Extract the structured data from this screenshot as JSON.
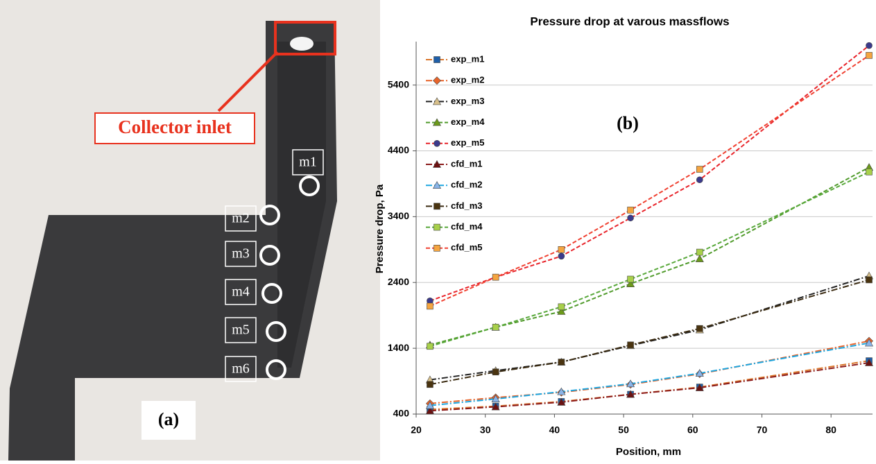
{
  "figure_a": {
    "callout": "Collector inlet",
    "markers": [
      "m1",
      "m2",
      "m3",
      "m4",
      "m5",
      "m6"
    ],
    "panel_label": "(a)"
  },
  "chart_data": {
    "type": "line",
    "title": "Pressure drop at varous massflows",
    "x_label": "Position, mm",
    "y_label": "Pressure drop, Pa",
    "annotation": "(b)",
    "x": [
      22,
      31.5,
      41,
      51,
      61,
      85.5
    ],
    "xlim": [
      20,
      86
    ],
    "xticks": [
      20,
      30,
      40,
      50,
      60,
      70,
      80
    ],
    "ylim": [
      400,
      6060
    ],
    "yticks": [
      400,
      1400,
      2400,
      3400,
      4400,
      5400
    ],
    "grid": true,
    "legend": "upper-left",
    "series": [
      {
        "name": "exp_m1",
        "color": "#d9752a",
        "marker": "square",
        "marker_color": "#1f5fa8",
        "line_style": "dashdot",
        "values": [
          470,
          520,
          590,
          700,
          810,
          1210
        ]
      },
      {
        "name": "exp_m2",
        "color": "#e8642a",
        "marker": "diamond",
        "marker_color": "#e8642a",
        "line_style": "dashdot",
        "values": [
          560,
          650,
          730,
          850,
          1010,
          1510
        ]
      },
      {
        "name": "exp_m3",
        "color": "#222222",
        "marker": "triangle",
        "marker_color": "#d8c08a",
        "line_style": "dashdot",
        "values": [
          920,
          1060,
          1190,
          1440,
          1680,
          2500
        ]
      },
      {
        "name": "exp_m4",
        "color": "#4f9a2a",
        "marker": "triangle",
        "marker_color": "#6c9a1a",
        "line_style": "dashed",
        "values": [
          1450,
          1720,
          1960,
          2380,
          2760,
          4150
        ]
      },
      {
        "name": "exp_m5",
        "color": "#e8232a",
        "marker": "circle",
        "marker_color": "#3b3a8c",
        "line_style": "dashed",
        "values": [
          2120,
          2480,
          2800,
          3380,
          3960,
          6000
        ]
      },
      {
        "name": "cfd_m1",
        "color": "#8b1a1a",
        "marker": "triangle",
        "marker_color": "#6b1212",
        "line_style": "dashdot",
        "values": [
          450,
          510,
          580,
          700,
          800,
          1180
        ]
      },
      {
        "name": "cfd_m2",
        "color": "#1ca6e0",
        "marker": "triangle",
        "marker_color": "#8ab4e8",
        "line_style": "dashdot",
        "values": [
          530,
          630,
          740,
          860,
          1020,
          1480
        ]
      },
      {
        "name": "cfd_m3",
        "color": "#3a2a10",
        "marker": "square",
        "marker_color": "#4a3410",
        "line_style": "dashdot",
        "values": [
          850,
          1040,
          1190,
          1450,
          1700,
          2440
        ]
      },
      {
        "name": "cfd_m4",
        "color": "#58a83a",
        "marker": "square",
        "marker_color": "#a8d04a",
        "line_style": "dashed",
        "values": [
          1430,
          1720,
          2030,
          2450,
          2860,
          4080
        ]
      },
      {
        "name": "cfd_m5",
        "color": "#f04030",
        "marker": "square",
        "marker_color": "#f5a540",
        "line_style": "dashed",
        "values": [
          2040,
          2480,
          2900,
          3500,
          4120,
          5850
        ]
      }
    ]
  }
}
